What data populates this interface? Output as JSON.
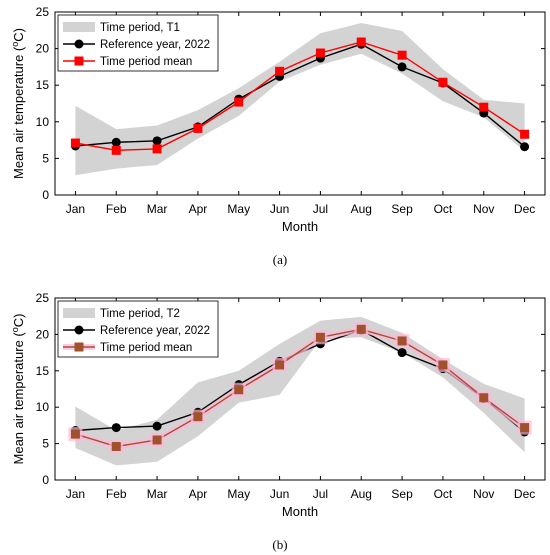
{
  "chart_data": [
    {
      "type": "line",
      "panel_label": "(a)",
      "xlabel": "Month",
      "ylabel": "Mean air temperature (°C)",
      "ylabel_main": "Mean air temperature (",
      "ylabel_unit_sup": "o",
      "ylabel_unit_tail": "C)",
      "ylim": [
        0,
        25
      ],
      "yticks": [
        0,
        5,
        10,
        15,
        20,
        25
      ],
      "categories": [
        "Jan",
        "Feb",
        "Mar",
        "Apr",
        "May",
        "Jun",
        "Jul",
        "Aug",
        "Sep",
        "Oct",
        "Nov",
        "Dec"
      ],
      "grid": false,
      "legend_position": "top-left",
      "band": {
        "name": "Time period, T1",
        "color": "#d3d3d3",
        "lower": [
          2.7,
          3.6,
          4.1,
          7.7,
          10.8,
          15.5,
          17.8,
          19.3,
          16.6,
          12.8,
          10.6,
          6.0
        ],
        "upper": [
          12.2,
          9.0,
          9.5,
          11.6,
          14.6,
          18.2,
          22.1,
          23.5,
          22.4,
          17.2,
          13.0,
          12.5
        ]
      },
      "series": [
        {
          "name": "Reference year, 2022",
          "color": "#000000",
          "marker": "circle",
          "values": [
            6.7,
            7.2,
            7.4,
            9.3,
            13.1,
            16.2,
            18.7,
            20.6,
            17.5,
            15.3,
            11.2,
            6.6
          ]
        },
        {
          "name": "Time period mean",
          "color": "#ff0000",
          "marker": "square",
          "values": [
            7.1,
            6.1,
            6.3,
            9.1,
            12.7,
            16.9,
            19.4,
            20.9,
            19.1,
            15.4,
            12.0,
            8.3
          ]
        }
      ]
    },
    {
      "type": "line",
      "panel_label": "(b)",
      "xlabel": "Month",
      "ylabel": "Mean air temperature (°C)",
      "ylabel_main": "Mean air temperature (",
      "ylabel_unit_sup": "o",
      "ylabel_unit_tail": "C)",
      "ylim": [
        0,
        25
      ],
      "yticks": [
        0,
        5,
        10,
        15,
        20,
        25
      ],
      "categories": [
        "Jan",
        "Feb",
        "Mar",
        "Apr",
        "May",
        "Jun",
        "Jul",
        "Aug",
        "Sep",
        "Oct",
        "Nov",
        "Dec"
      ],
      "grid": false,
      "legend_position": "top-left",
      "band": {
        "name": "Time period, T2",
        "color": "#d3d3d3",
        "lower": [
          4.4,
          2.0,
          2.5,
          6.0,
          10.6,
          11.7,
          19.3,
          19.6,
          17.5,
          14.1,
          9.2,
          3.8
        ],
        "upper": [
          10.1,
          6.8,
          8.3,
          13.4,
          15.0,
          18.7,
          21.9,
          22.4,
          20.2,
          16.6,
          13.2,
          11.2
        ]
      },
      "series": [
        {
          "name": "Reference year, 2022",
          "color": "#000000",
          "marker": "circle",
          "values": [
            6.8,
            7.2,
            7.4,
            9.3,
            13.1,
            16.3,
            18.7,
            20.6,
            17.5,
            15.3,
            11.2,
            6.6
          ]
        },
        {
          "name": "Time period mean",
          "color": "#a0522d",
          "highlight": "#ffb6d9",
          "marker": "square",
          "values": [
            6.3,
            4.6,
            5.5,
            8.7,
            12.4,
            15.8,
            19.6,
            20.7,
            19.1,
            15.8,
            11.3,
            7.2
          ]
        }
      ]
    }
  ]
}
